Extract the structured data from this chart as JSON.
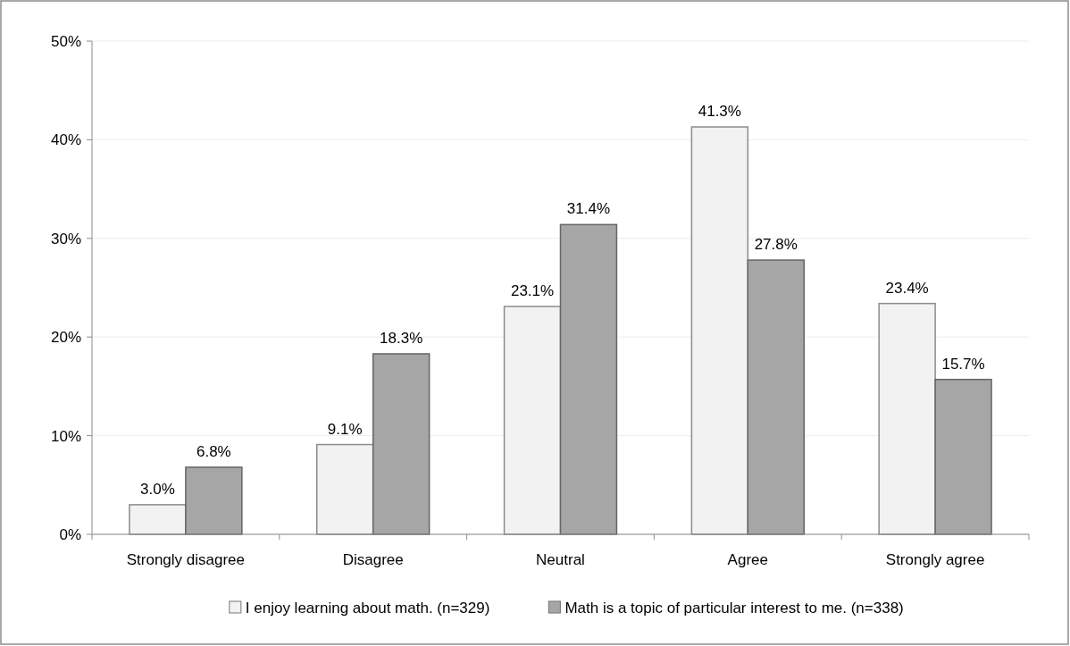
{
  "chart_data": {
    "type": "bar",
    "categories": [
      "Strongly disagree",
      "Disagree",
      "Neutral",
      "Agree",
      "Strongly agree"
    ],
    "series": [
      {
        "name": "I enjoy learning about math. (n=329)",
        "color": "#f2f2f2",
        "values": [
          3.0,
          9.1,
          23.1,
          41.3,
          23.4
        ],
        "value_labels": [
          "3.0%",
          "9.1%",
          "23.1%",
          "41.3%",
          "23.4%"
        ]
      },
      {
        "name": "Math is a topic of particular interest to me. (n=338)",
        "color": "#a6a6a6",
        "values": [
          6.8,
          18.3,
          31.4,
          27.8,
          15.7
        ],
        "value_labels": [
          "6.8%",
          "18.3%",
          "31.4%",
          "27.8%",
          "15.7%"
        ]
      }
    ],
    "ylim": [
      0,
      50
    ],
    "yticks": [
      {
        "value": 0,
        "label": "0%"
      },
      {
        "value": 10,
        "label": "10%"
      },
      {
        "value": 20,
        "label": "20%"
      },
      {
        "value": 30,
        "label": "30%"
      },
      {
        "value": 40,
        "label": "40%"
      },
      {
        "value": 50,
        "label": "50%"
      }
    ],
    "grid": "y",
    "legend": "bottom"
  }
}
